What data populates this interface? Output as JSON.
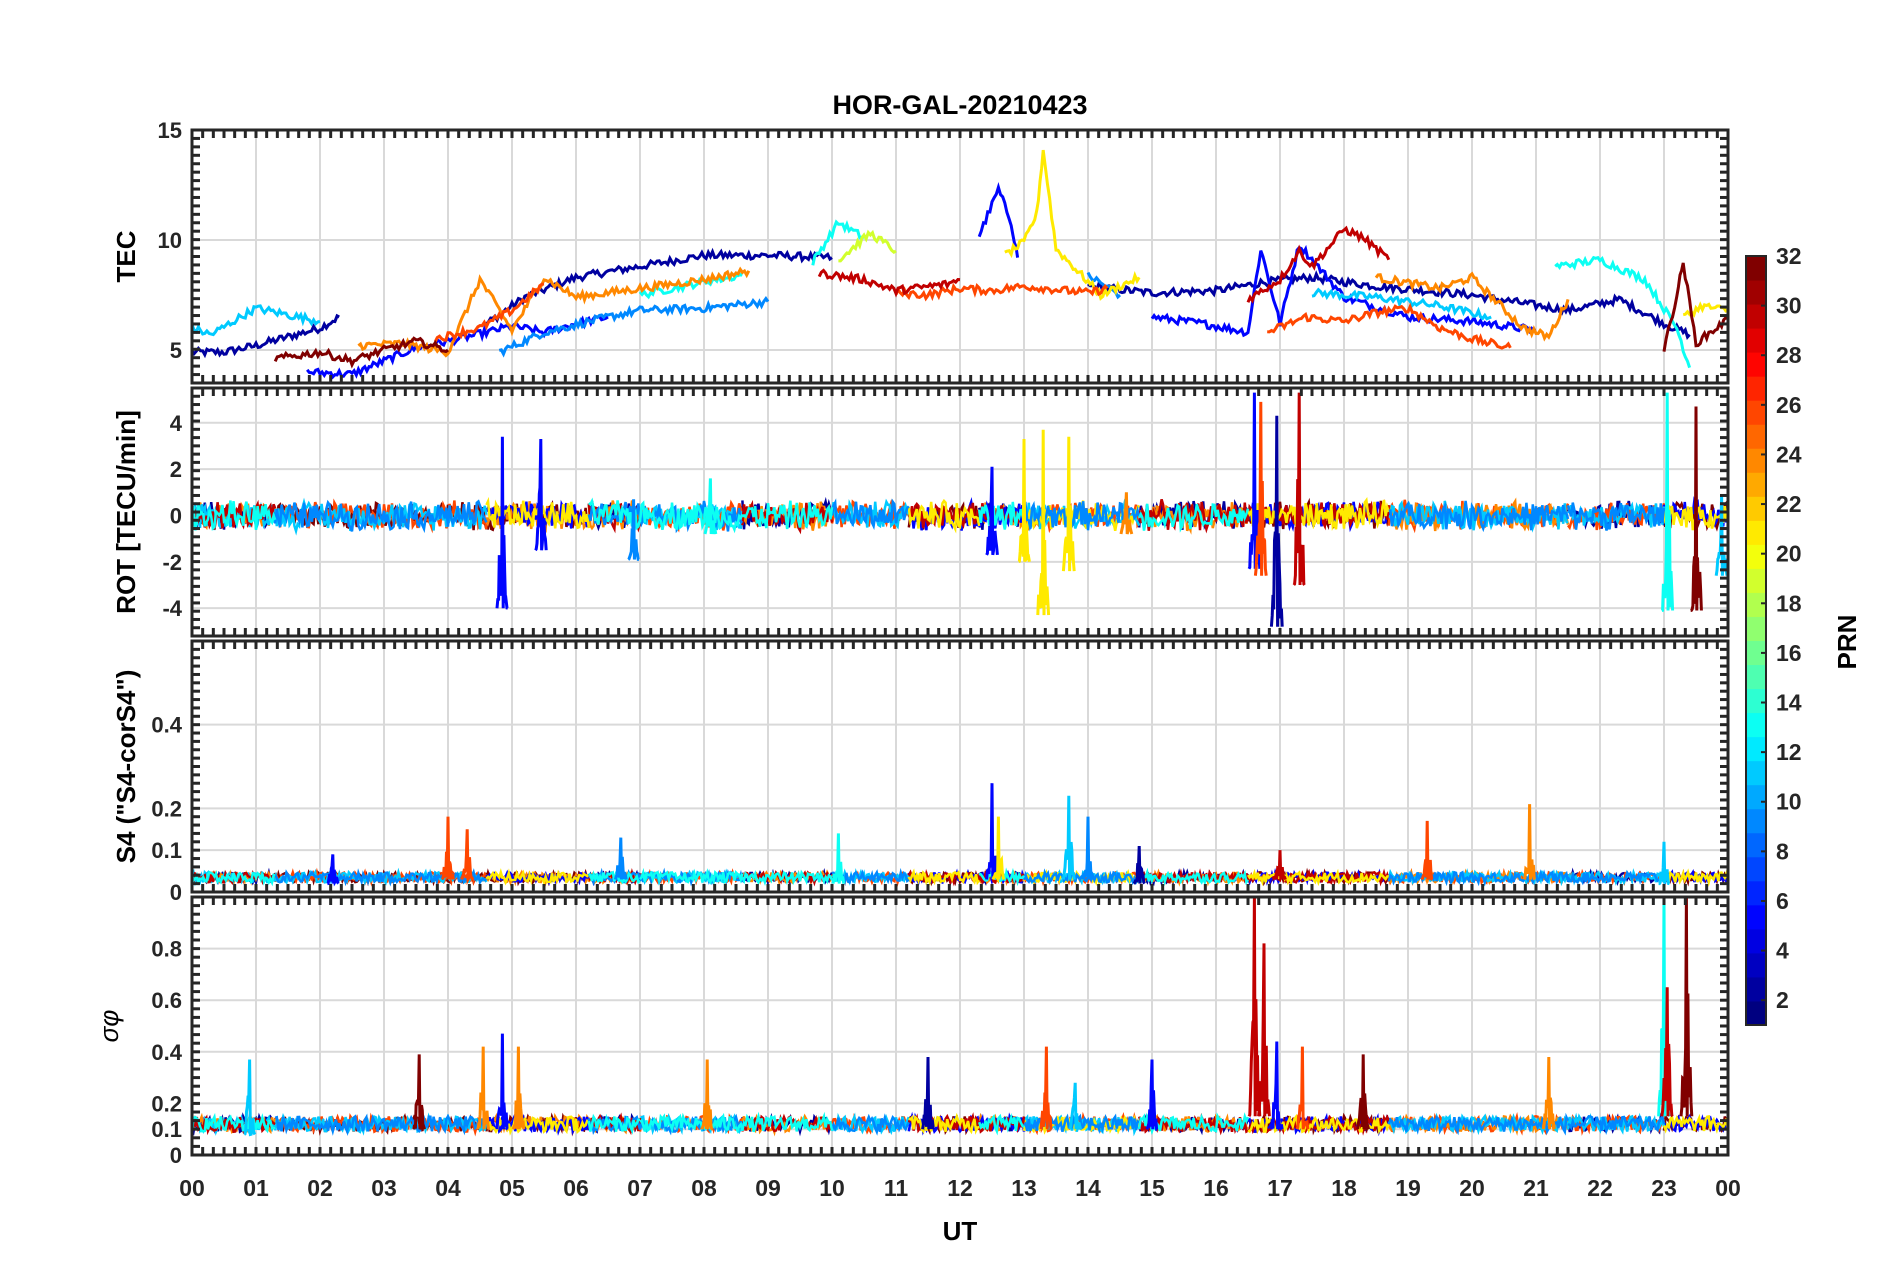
{
  "title": "HOR-GAL-20210423",
  "x_axis": {
    "label": "UT",
    "ticks": [
      "00",
      "01",
      "02",
      "03",
      "04",
      "05",
      "06",
      "07",
      "08",
      "09",
      "10",
      "11",
      "12",
      "13",
      "14",
      "15",
      "16",
      "17",
      "18",
      "19",
      "20",
      "21",
      "22",
      "23",
      "00"
    ]
  },
  "colorbar": {
    "label": "PRN",
    "range": [
      1,
      32
    ],
    "ticks": [
      "2",
      "4",
      "6",
      "8",
      "10",
      "12",
      "14",
      "16",
      "18",
      "20",
      "22",
      "24",
      "26",
      "28",
      "30",
      "32"
    ],
    "colormap": "jet"
  },
  "colors": {
    "prn2": "#0c0c9c",
    "prn5": "#1a2fe0",
    "prn9": "#1f8fff",
    "prn11": "#1fc3ff",
    "prn13": "#2ff0f0",
    "prn19": "#d8f040",
    "prn21": "#ffe000",
    "prn24": "#ff8000",
    "prn26": "#ff3a00",
    "prn30": "#c01010",
    "prn32": "#800000"
  },
  "chart_data": [
    {
      "type": "line",
      "panel": "tec",
      "ylabel": "TEC",
      "ylim": [
        3.5,
        15
      ],
      "yticks": [
        "5",
        "10",
        "15"
      ],
      "series": [
        {
          "prn": 2,
          "x": [
            0.0,
            0.5,
            1.0,
            1.5,
            2.0,
            2.3
          ],
          "y": [
            4.9,
            4.9,
            5.2,
            5.6,
            6.0,
            6.5
          ]
        },
        {
          "prn": 2,
          "x": [
            4.6,
            5.2,
            6.0,
            7.0,
            8.0,
            9.0,
            10.0
          ],
          "y": [
            6.2,
            7.4,
            8.3,
            8.8,
            9.3,
            9.3,
            9.2
          ]
        },
        {
          "prn": 2,
          "x": [
            14.0,
            15.0,
            16.0,
            16.8,
            17.5,
            18.5,
            20.0,
            21.5,
            22.3,
            23.0,
            23.4
          ],
          "y": [
            7.9,
            7.6,
            7.7,
            8.1,
            8.3,
            7.9,
            7.5,
            6.8,
            7.3,
            6.2,
            5.7
          ]
        },
        {
          "prn": 5,
          "x": [
            1.8,
            2.5,
            3.0,
            3.5,
            4.0,
            4.6,
            5.0,
            5.5,
            6.0,
            6.5
          ],
          "y": [
            4.0,
            3.9,
            4.5,
            5.1,
            5.4,
            5.8,
            6.1,
            5.8,
            6.2,
            6.5
          ]
        },
        {
          "prn": 5,
          "x": [
            12.3,
            12.6,
            12.8,
            12.9
          ],
          "y": [
            10.2,
            12.3,
            10.8,
            9.2
          ]
        },
        {
          "prn": 5,
          "x": [
            15.0,
            15.8,
            16.5,
            16.7,
            17.0,
            17.3,
            18.0,
            19.0,
            20.0,
            21.0
          ],
          "y": [
            6.5,
            6.2,
            5.8,
            9.6,
            6.2,
            9.8,
            7.4,
            6.5,
            6.3,
            5.9
          ]
        },
        {
          "prn": 9,
          "x": [
            4.8,
            5.5,
            6.5,
            7.0,
            8.0,
            9.0
          ],
          "y": [
            4.9,
            5.8,
            6.5,
            6.8,
            6.9,
            7.2
          ]
        },
        {
          "prn": 9,
          "x": [
            14.0,
            14.5
          ],
          "y": [
            8.4,
            7.5
          ]
        },
        {
          "prn": 11,
          "x": [
            0.0,
            0.3,
            0.7,
            1.0,
            1.5,
            2.0
          ],
          "y": [
            6.0,
            5.7,
            6.4,
            6.9,
            6.6,
            6.3
          ]
        },
        {
          "prn": 11,
          "x": [
            17.5,
            18.5,
            19.5,
            20.3
          ],
          "y": [
            7.6,
            7.4,
            7.0,
            6.5
          ]
        },
        {
          "prn": 13,
          "x": [
            7.0,
            8.0,
            8.6
          ],
          "y": [
            7.5,
            8.1,
            8.4
          ]
        },
        {
          "prn": 13,
          "x": [
            9.7,
            10.1,
            10.5
          ],
          "y": [
            9.0,
            10.8,
            10.1
          ]
        },
        {
          "prn": 13,
          "x": [
            21.3,
            22.0,
            22.7,
            23.2,
            23.4
          ],
          "y": [
            8.8,
            9.1,
            8.2,
            6.0,
            4.2
          ]
        },
        {
          "prn": 19,
          "x": [
            10.1,
            10.6,
            11.0
          ],
          "y": [
            9.1,
            10.3,
            9.5
          ]
        },
        {
          "prn": 21,
          "x": [
            12.7,
            13.0,
            13.2,
            13.3,
            13.5,
            13.8,
            14.2,
            14.8
          ],
          "y": [
            9.3,
            9.9,
            11.2,
            14.1,
            9.6,
            8.7,
            7.5,
            8.3
          ]
        },
        {
          "prn": 21,
          "x": [
            23.3,
            23.6,
            24.0
          ],
          "y": [
            6.5,
            7.0,
            6.8
          ]
        },
        {
          "prn": 24,
          "x": [
            2.6,
            3.3,
            4.0,
            4.5,
            5.0,
            5.5,
            6.0,
            6.5,
            7.0,
            8.0,
            8.7
          ],
          "y": [
            5.2,
            5.3,
            4.9,
            8.2,
            5.9,
            8.3,
            7.4,
            7.6,
            7.8,
            8.2,
            8.6
          ]
        },
        {
          "prn": 24,
          "x": [
            18.5,
            19.5,
            20.0,
            20.8,
            21.2,
            21.5
          ],
          "y": [
            8.3,
            7.8,
            8.3,
            6.0,
            5.6,
            7.3
          ]
        },
        {
          "prn": 26,
          "x": [
            3.8,
            4.5,
            5.0,
            5.5
          ],
          "y": [
            5.5,
            6.0,
            6.8,
            8.0
          ]
        },
        {
          "prn": 26,
          "x": [
            11.0,
            11.5,
            12.0,
            12.5,
            13.0,
            14.0,
            14.3
          ],
          "y": [
            7.6,
            7.5,
            7.8,
            7.7,
            7.9,
            7.6,
            7.8
          ]
        },
        {
          "prn": 26,
          "x": [
            16.8,
            17.4,
            18.0,
            18.5,
            19.0,
            19.5,
            20.0,
            20.6
          ],
          "y": [
            5.8,
            6.5,
            6.3,
            6.7,
            6.9,
            6.0,
            5.5,
            5.1
          ]
        },
        {
          "prn": 30,
          "x": [
            9.8,
            10.5,
            11.0,
            11.8,
            12.0
          ],
          "y": [
            8.5,
            8.2,
            7.7,
            8.0,
            8.2
          ]
        },
        {
          "prn": 30,
          "x": [
            16.5,
            17.0,
            17.3,
            17.5,
            17.8,
            18.0,
            18.3,
            18.7
          ],
          "y": [
            7.3,
            8.2,
            9.5,
            8.8,
            9.8,
            10.5,
            10.1,
            9.1
          ]
        },
        {
          "prn": 32,
          "x": [
            1.3,
            2.0,
            2.5,
            3.0,
            3.5,
            4.0
          ],
          "y": [
            4.6,
            4.9,
            4.5,
            5.0,
            5.4,
            5.0
          ]
        },
        {
          "prn": 32,
          "x": [
            23.0,
            23.2,
            23.3,
            23.5,
            24.0
          ],
          "y": [
            5.0,
            7.5,
            9.0,
            5.3,
            6.4
          ]
        }
      ]
    },
    {
      "type": "line",
      "panel": "rot",
      "ylabel": "ROT [TECU/min]",
      "ylim": [
        -5.2,
        5.5
      ],
      "yticks": [
        "-4",
        "-2",
        "0",
        "2",
        "4"
      ],
      "spikes": [
        {
          "prn": 5,
          "x": 4.85,
          "min": -4.0,
          "max": 3.4
        },
        {
          "prn": 5,
          "x": 5.45,
          "min": -1.5,
          "max": 3.3
        },
        {
          "prn": 9,
          "x": 6.9,
          "min": -1.9,
          "max": 0.7
        },
        {
          "prn": 13,
          "x": 8.1,
          "min": -0.8,
          "max": 1.6
        },
        {
          "prn": 5,
          "x": 12.5,
          "min": -1.7,
          "max": 2.1
        },
        {
          "prn": 21,
          "x": 13.3,
          "min": -4.3,
          "max": 3.7
        },
        {
          "prn": 21,
          "x": 13.0,
          "min": -2.0,
          "max": 3.3
        },
        {
          "prn": 21,
          "x": 13.7,
          "min": -2.4,
          "max": 3.4
        },
        {
          "prn": 24,
          "x": 14.6,
          "min": -0.8,
          "max": 1.0
        },
        {
          "prn": 5,
          "x": 16.6,
          "min": -2.3,
          "max": 5.3
        },
        {
          "prn": 2,
          "x": 16.95,
          "min": -4.8,
          "max": 4.3
        },
        {
          "prn": 26,
          "x": 16.7,
          "min": -2.6,
          "max": 4.9
        },
        {
          "prn": 30,
          "x": 17.3,
          "min": -3.0,
          "max": 5.3
        },
        {
          "prn": 13,
          "x": 23.05,
          "min": -4.1,
          "max": 5.3
        },
        {
          "prn": 32,
          "x": 23.5,
          "min": -4.1,
          "max": 4.7
        },
        {
          "prn": 11,
          "x": 23.9,
          "min": -2.6,
          "max": 0.9
        }
      ]
    },
    {
      "type": "line",
      "panel": "s4",
      "ylabel": "S4 (\"S4-corS4\")",
      "ylim": [
        0,
        0.6
      ],
      "yticks": [
        "0",
        "0.1",
        "0.2",
        "0.4"
      ],
      "spikes": [
        {
          "prn": 5,
          "x": 2.2,
          "min": 0.02,
          "max": 0.09
        },
        {
          "prn": 26,
          "x": 4.0,
          "min": 0.03,
          "max": 0.18
        },
        {
          "prn": 26,
          "x": 4.3,
          "min": 0.03,
          "max": 0.15
        },
        {
          "prn": 9,
          "x": 6.7,
          "min": 0.03,
          "max": 0.13
        },
        {
          "prn": 13,
          "x": 10.1,
          "min": 0.02,
          "max": 0.14
        },
        {
          "prn": 5,
          "x": 12.5,
          "min": 0.03,
          "max": 0.26
        },
        {
          "prn": 21,
          "x": 12.6,
          "min": 0.03,
          "max": 0.18
        },
        {
          "prn": 11,
          "x": 13.7,
          "min": 0.03,
          "max": 0.23
        },
        {
          "prn": 9,
          "x": 14.0,
          "min": 0.03,
          "max": 0.18
        },
        {
          "prn": 2,
          "x": 14.8,
          "min": 0.02,
          "max": 0.11
        },
        {
          "prn": 30,
          "x": 17.0,
          "min": 0.03,
          "max": 0.1
        },
        {
          "prn": 26,
          "x": 19.3,
          "min": 0.03,
          "max": 0.17
        },
        {
          "prn": 24,
          "x": 20.9,
          "min": 0.03,
          "max": 0.21
        },
        {
          "prn": 11,
          "x": 23.0,
          "min": 0.02,
          "max": 0.12
        }
      ]
    },
    {
      "type": "line",
      "panel": "sigma_phi",
      "ylabel": "σφ",
      "ylim": [
        0,
        1
      ],
      "yticks": [
        "0",
        "0.1",
        "0.2",
        "0.4",
        "0.6",
        "0.8"
      ],
      "spikes": [
        {
          "prn": 11,
          "x": 0.9,
          "min": 0.08,
          "max": 0.37
        },
        {
          "prn": 32,
          "x": 3.55,
          "min": 0.1,
          "max": 0.39
        },
        {
          "prn": 24,
          "x": 4.55,
          "min": 0.1,
          "max": 0.42
        },
        {
          "prn": 5,
          "x": 4.85,
          "min": 0.1,
          "max": 0.47
        },
        {
          "prn": 24,
          "x": 5.1,
          "min": 0.1,
          "max": 0.42
        },
        {
          "prn": 24,
          "x": 8.05,
          "min": 0.1,
          "max": 0.37
        },
        {
          "prn": 2,
          "x": 11.5,
          "min": 0.1,
          "max": 0.38
        },
        {
          "prn": 26,
          "x": 13.35,
          "min": 0.1,
          "max": 0.42
        },
        {
          "prn": 11,
          "x": 13.8,
          "min": 0.1,
          "max": 0.28
        },
        {
          "prn": 5,
          "x": 15.0,
          "min": 0.1,
          "max": 0.37
        },
        {
          "prn": 30,
          "x": 16.6,
          "min": 0.15,
          "max": 1.0
        },
        {
          "prn": 30,
          "x": 16.75,
          "min": 0.15,
          "max": 0.82
        },
        {
          "prn": 5,
          "x": 16.95,
          "min": 0.1,
          "max": 0.44
        },
        {
          "prn": 26,
          "x": 17.35,
          "min": 0.1,
          "max": 0.42
        },
        {
          "prn": 32,
          "x": 18.3,
          "min": 0.1,
          "max": 0.39
        },
        {
          "prn": 24,
          "x": 21.2,
          "min": 0.1,
          "max": 0.38
        },
        {
          "prn": 13,
          "x": 23.0,
          "min": 0.15,
          "max": 1.0
        },
        {
          "prn": 30,
          "x": 23.05,
          "min": 0.15,
          "max": 0.65
        },
        {
          "prn": 32,
          "x": 23.35,
          "min": 0.15,
          "max": 1.0
        }
      ]
    }
  ]
}
